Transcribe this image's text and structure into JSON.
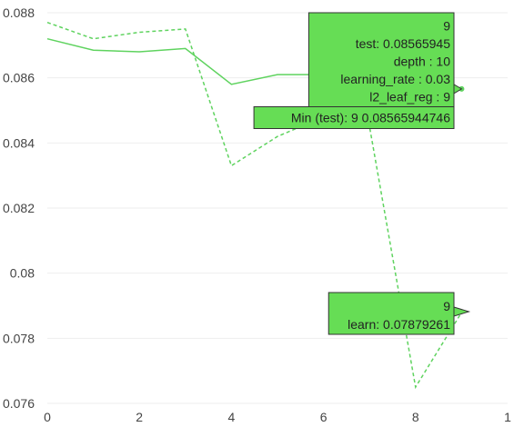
{
  "chart_data": {
    "type": "line",
    "xlim": [
      0,
      10
    ],
    "ylim": [
      0.076,
      0.088
    ],
    "grid": true,
    "x_tick_labels": [
      "0",
      "2",
      "4",
      "6",
      "8",
      "1"
    ],
    "y_tick_labels": [
      "0.076",
      "0.078",
      "0.08",
      "0.082",
      "0.084",
      "0.086",
      "0.088"
    ],
    "series": [
      {
        "style": "solid",
        "color": "#5fd35f",
        "x": [
          0,
          1,
          2,
          3,
          4,
          5,
          6,
          7,
          8,
          9
        ],
        "y": [
          0.0872,
          0.08685,
          0.0868,
          0.0869,
          0.0858,
          0.0861,
          0.0861,
          0.0861,
          0.0859,
          0.08565945
        ]
      },
      {
        "style": "dashed",
        "color": "#5fd35f",
        "x": [
          0,
          1,
          2,
          3,
          4,
          5,
          6,
          7,
          8,
          9
        ],
        "y": [
          0.0877,
          0.0872,
          0.0874,
          0.0875,
          0.0833,
          0.0842,
          0.0848,
          0.0845,
          0.0765,
          0.07879261
        ]
      }
    ],
    "hover_test": {
      "lines": [
        "9",
        "test: 0.08565945",
        "depth : 10",
        "learning_rate : 0.03",
        "l2_leaf_reg : 9"
      ],
      "min_label": "Min (test): 9 0.08565944746"
    },
    "hover_learn": {
      "lines": [
        "9",
        "learn: 0.07879261"
      ]
    }
  },
  "colors": {
    "series": "#5fd35f",
    "tooltip_fill": "#66dd55",
    "tooltip_border": "#333333",
    "grid": "#eeeeee",
    "text": "#444444"
  }
}
